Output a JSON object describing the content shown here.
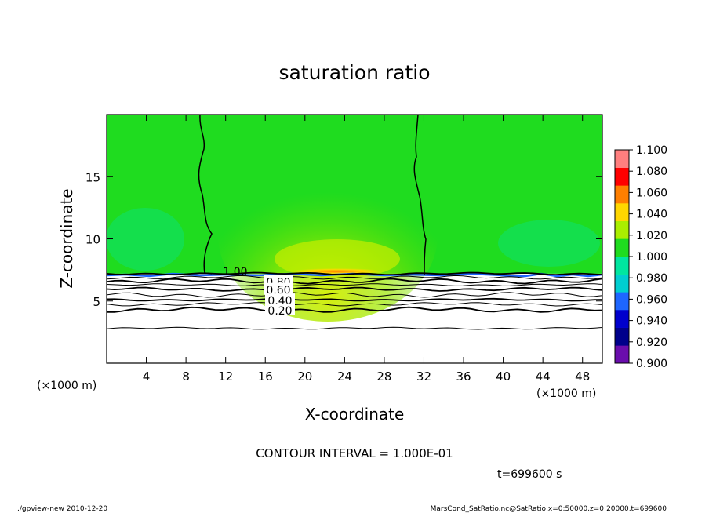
{
  "chart_data": {
    "type": "heatmap",
    "title": "saturation ratio",
    "xlabel": "X-coordinate",
    "ylabel": "Z-coordinate",
    "x_scale_note": "(×1000 m)",
    "y_scale_note": "(×1000 m)",
    "xlim": [
      0,
      50
    ],
    "ylim": [
      0,
      20
    ],
    "x_ticks": [
      4,
      8,
      12,
      16,
      20,
      24,
      28,
      32,
      36,
      40,
      44,
      48
    ],
    "y_ticks": [
      5,
      10,
      15
    ],
    "colorbar": {
      "levels": [
        0.9,
        0.92,
        0.94,
        0.96,
        0.98,
        1.0,
        1.02,
        1.04,
        1.06,
        1.08,
        1.1
      ],
      "labels": [
        "0.900",
        "0.920",
        "0.940",
        "0.960",
        "0.980",
        "1.000",
        "1.020",
        "1.040",
        "1.060",
        "1.080",
        "1.100"
      ],
      "colors": [
        "#6a0dad",
        "#00008b",
        "#0000cd",
        "#1e66ff",
        "#00ced1",
        "#00e6a0",
        "#1fdc1f",
        "#aaee00",
        "#ffd700",
        "#ff7f00",
        "#ff0000",
        "#ff7f7f"
      ]
    },
    "saturated_top_km": 7.2,
    "contours": [
      {
        "level": 1.0,
        "label": "1.00",
        "z": 7.2
      },
      {
        "level": 0.9,
        "label": "",
        "z": 6.9
      },
      {
        "level": 0.8,
        "label": "0.80",
        "z": 6.6
      },
      {
        "level": 0.7,
        "label": "",
        "z": 6.3
      },
      {
        "level": 0.6,
        "label": "0.60",
        "z": 5.95
      },
      {
        "level": 0.5,
        "label": "",
        "z": 5.5
      },
      {
        "level": 0.4,
        "label": "0.40",
        "z": 5.1
      },
      {
        "level": 0.3,
        "label": "",
        "z": 4.75
      },
      {
        "level": 0.2,
        "label": "0.20",
        "z": 4.3
      },
      {
        "level": 0.1,
        "label": "",
        "z": 2.8
      }
    ],
    "contour_interval_text": "CONTOUR INTERVAL = 1.000E-01",
    "time_text": "t=699600 s"
  },
  "footer": {
    "left": "./gpview-new  2010-12-20",
    "right": "MarsCond_SatRatio.nc@SatRatio,x=0:50000,z=0:20000,t=699600"
  }
}
